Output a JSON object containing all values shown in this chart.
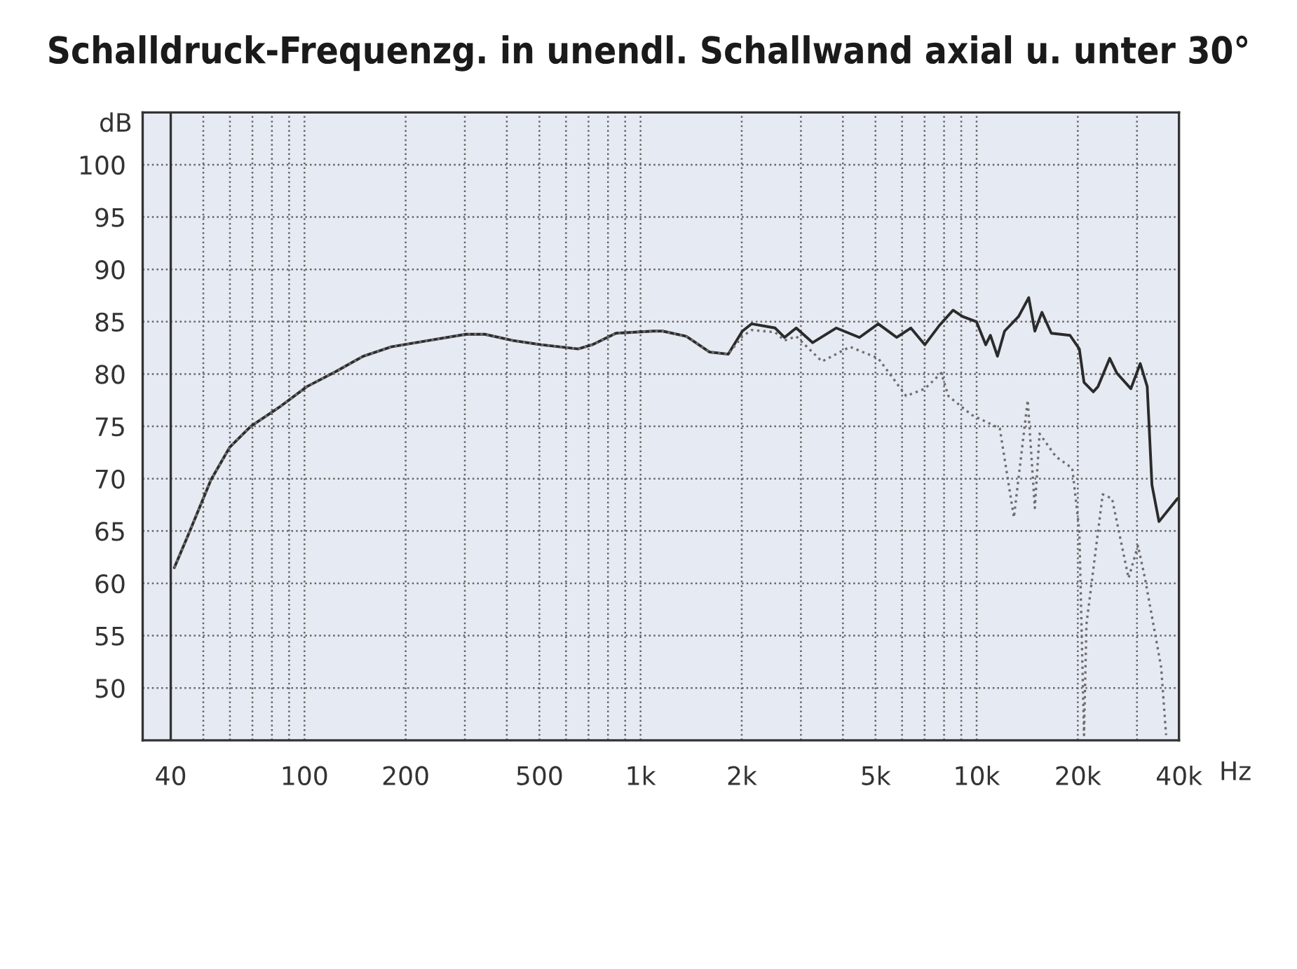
{
  "chart_data": {
    "type": "line",
    "title": "Schalldruck-Frequenzg. in unendl. Schallwand axial u. unter 30°",
    "ylabel": "dB",
    "log": "x",
    "grid": true,
    "xlim": [
      33,
      40000
    ],
    "ylim": [
      45,
      105
    ],
    "xticks": [
      40,
      {
        "value": 50,
        "label": null
      },
      {
        "value": 60,
        "label": null
      },
      {
        "value": 70,
        "label": null
      },
      {
        "value": 80,
        "label": null
      },
      {
        "value": 90,
        "label": null
      },
      100,
      200,
      {
        "value": 300,
        "label": null
      },
      {
        "value": 400,
        "label": null
      },
      500,
      {
        "value": 600,
        "label": null
      },
      {
        "value": 700,
        "label": null
      },
      {
        "value": 800,
        "label": null
      },
      {
        "value": 900,
        "label": null
      },
      {
        "value": 1000,
        "label": "1k"
      },
      {
        "value": 2000,
        "label": "2k"
      },
      {
        "value": 3000,
        "label": null
      },
      {
        "value": 4000,
        "label": null
      },
      {
        "value": 5000,
        "label": "5k"
      },
      {
        "value": 6000,
        "label": null
      },
      {
        "value": 7000,
        "label": null
      },
      {
        "value": 8000,
        "label": null
      },
      {
        "value": 9000,
        "label": null
      },
      {
        "value": 10000,
        "label": "10k"
      },
      {
        "value": 20000,
        "label": "20k"
      },
      {
        "value": 30000,
        "label": null
      },
      {
        "value": 40000,
        "label": "40k"
      }
    ],
    "xlabel": "Hz",
    "yticks": [
      50,
      55,
      60,
      65,
      70,
      75,
      80,
      85,
      90,
      95,
      100
    ],
    "ref_lines": [
      {
        "axis": "x",
        "value": 40,
        "color": "#333333",
        "line_style": "solid"
      }
    ],
    "series": [
      {
        "color": "#2b2b2b",
        "line_style": "solid",
        "x": [
          41,
          45.6,
          52.7,
          59.9,
          69.2,
          83.9,
          101.7,
          123.3,
          149.5,
          181.3,
          234,
          302,
          344,
          417,
          506,
          652,
          718,
          845,
          1092,
          1164,
          1368,
          1605,
          1824,
          2009,
          2142,
          2514,
          2681,
          2905,
          3252,
          3820,
          4480,
          5096,
          5785,
          6370,
          7014,
          7726,
          8510,
          9080,
          9985,
          10645,
          10990,
          11535,
          12110,
          13330,
          14290,
          14900,
          15640,
          16680,
          18960,
          20210,
          20870,
          22250,
          22970,
          24890,
          26120,
          28770,
          30680,
          32180,
          33240,
          34880,
          39600
        ],
        "values": [
          61.5,
          65,
          69.9,
          73,
          75,
          76.8,
          78.8,
          80.2,
          81.7,
          82.6,
          83.2,
          83.8,
          83.8,
          83.2,
          82.8,
          82.4,
          82.8,
          83.9,
          84.1,
          84.1,
          83.6,
          82.1,
          81.9,
          84.1,
          84.8,
          84.4,
          83.5,
          84.4,
          83,
          84.4,
          83.5,
          84.8,
          83.5,
          84.4,
          82.8,
          84.6,
          86.1,
          85.5,
          85,
          82.8,
          83.7,
          81.7,
          84.1,
          85.5,
          87.3,
          84.1,
          85.9,
          83.9,
          83.7,
          82.4,
          79.2,
          78.3,
          78.8,
          81.5,
          80.1,
          78.6,
          81,
          78.8,
          69.4,
          65.9,
          68.1
        ]
      },
      {
        "color": "#6e6e6e",
        "line_style": "dotted",
        "x": [
          41,
          45.6,
          52.7,
          59.9,
          69.2,
          83.9,
          101.7,
          123.3,
          149.5,
          181.3,
          234,
          302,
          344,
          417,
          506,
          652,
          718,
          845,
          1092,
          1164,
          1368,
          1605,
          1824,
          2009,
          2142,
          2514,
          2681,
          2905,
          3467,
          4200,
          5096,
          6170,
          7014,
          7850,
          8240,
          9660,
          11720,
          12910,
          14190,
          14900,
          15390,
          17220,
          19260,
          20210,
          20870,
          21220,
          23720,
          25290,
          28320,
          30200,
          31680,
          35400,
          36620
        ],
        "values": [
          61.5,
          65,
          69.9,
          73,
          75,
          76.8,
          78.8,
          80.2,
          81.7,
          82.6,
          83.2,
          83.8,
          83.8,
          83.2,
          82.8,
          82.4,
          82.8,
          83.9,
          84.1,
          84.1,
          83.6,
          82.1,
          81.9,
          83.6,
          84.2,
          84,
          83.2,
          83.6,
          81.2,
          82.6,
          81.5,
          77.9,
          78.6,
          80.1,
          77.9,
          76.1,
          74.8,
          66.3,
          77.5,
          67.2,
          74.3,
          72.1,
          71,
          65,
          45.5,
          56.1,
          68.5,
          68.1,
          60.5,
          63.6,
          60.5,
          52,
          45.5
        ]
      }
    ]
  }
}
